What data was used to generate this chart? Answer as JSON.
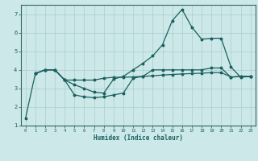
{
  "xlabel": "Humidex (Indice chaleur)",
  "xlim": [
    -0.5,
    23.5
  ],
  "ylim": [
    1,
    7.5
  ],
  "background_color": "#cce8e8",
  "grid_color": "#aacece",
  "line_color": "#1a6060",
  "line1_x": [
    0,
    1,
    2,
    3,
    4,
    5,
    6,
    7,
    8,
    9,
    10,
    11,
    12,
    13,
    14,
    15,
    16,
    17,
    18,
    19,
    20,
    21,
    22,
    23
  ],
  "line1_y": [
    1.4,
    3.8,
    4.0,
    4.0,
    3.45,
    2.65,
    2.55,
    2.5,
    2.55,
    2.65,
    2.75,
    3.55,
    3.65,
    4.0,
    4.0,
    4.0,
    4.0,
    4.0,
    4.0,
    4.1,
    4.1,
    3.6,
    3.65,
    3.65
  ],
  "line2_x": [
    1,
    2,
    3,
    4,
    5,
    6,
    7,
    8,
    9,
    10,
    11,
    12,
    13,
    14,
    15,
    16,
    17,
    18,
    19,
    20,
    21,
    22,
    23
  ],
  "line2_y": [
    3.8,
    4.0,
    4.0,
    3.45,
    3.45,
    3.45,
    3.45,
    3.55,
    3.6,
    3.6,
    3.62,
    3.65,
    3.68,
    3.72,
    3.75,
    3.78,
    3.8,
    3.82,
    3.85,
    3.85,
    3.62,
    3.65,
    3.65
  ],
  "line3_x": [
    1,
    2,
    3,
    4,
    5,
    6,
    7,
    8,
    9,
    10,
    11,
    12,
    13,
    14,
    15,
    16,
    17,
    18,
    19,
    20,
    21,
    22,
    23
  ],
  "line3_y": [
    3.8,
    4.0,
    4.0,
    3.45,
    3.2,
    3.0,
    2.8,
    2.75,
    3.5,
    3.65,
    4.0,
    4.35,
    4.75,
    5.35,
    6.65,
    7.25,
    6.3,
    5.65,
    5.7,
    5.7,
    4.15,
    3.6,
    3.65
  ],
  "xticks": [
    0,
    1,
    2,
    3,
    4,
    5,
    6,
    7,
    8,
    9,
    10,
    11,
    12,
    13,
    14,
    15,
    16,
    17,
    18,
    19,
    20,
    21,
    22,
    23
  ],
  "yticks": [
    1,
    2,
    3,
    4,
    5,
    6,
    7
  ]
}
